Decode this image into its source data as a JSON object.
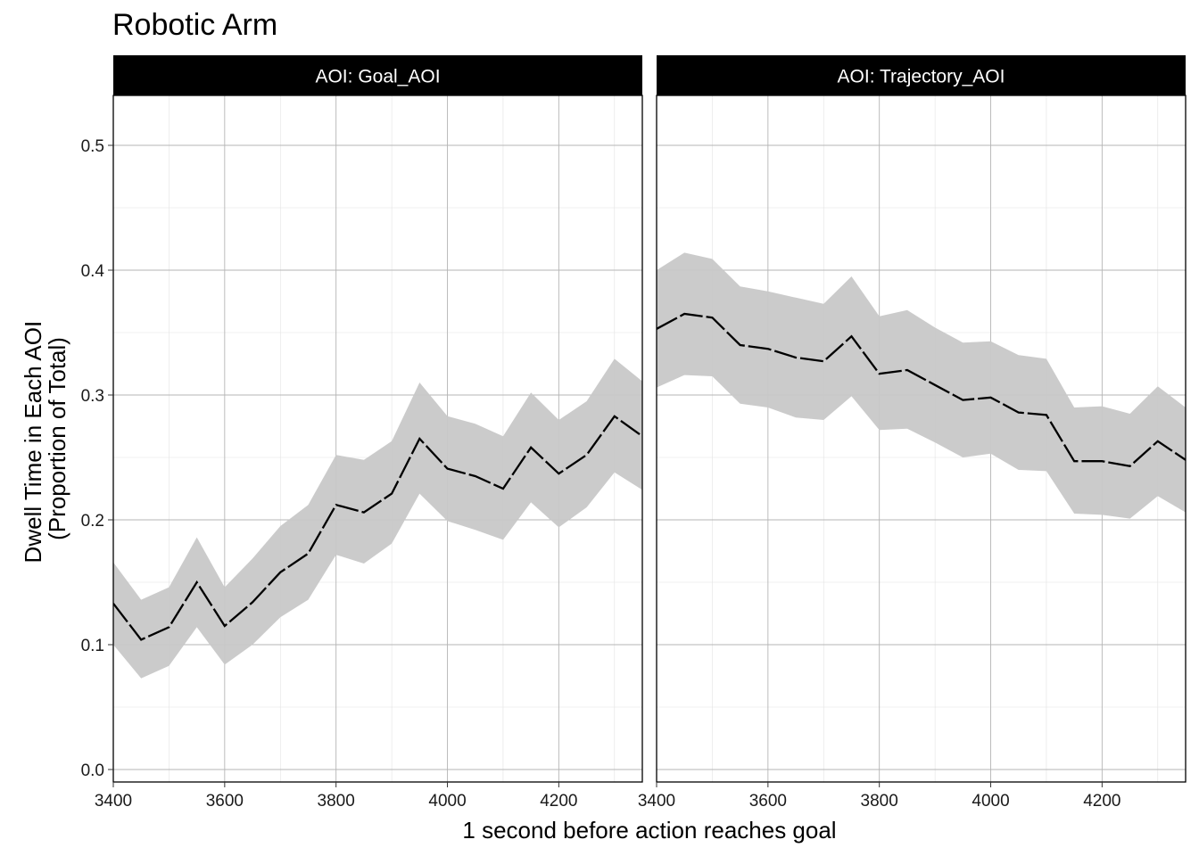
{
  "chart_data": {
    "type": "line",
    "title": "Robotic Arm",
    "xlabel": "1 second before action reaches goal",
    "ylabel_lines": [
      "Dwell Time in Each AOI",
      "(Proportion of Total)"
    ],
    "xlim": [
      3400,
      4350
    ],
    "ylim": [
      -0.01,
      0.54
    ],
    "x_ticks": [
      3400,
      3600,
      3800,
      4000,
      4200
    ],
    "x_tick_labels": [
      "3400",
      "3600",
      "3800",
      "4000",
      "4200"
    ],
    "y_ticks": [
      0.0,
      0.1,
      0.2,
      0.3,
      0.4,
      0.5
    ],
    "y_tick_labels": [
      "0.0",
      "0.1",
      "0.2",
      "0.3",
      "0.4",
      "0.5"
    ],
    "grid": true,
    "line_style": "dashed",
    "line_color": "#000000",
    "ribbon_color": "#c8c8c8",
    "panels": [
      {
        "label": "AOI:  Goal_AOI",
        "x": [
          3400,
          3450,
          3500,
          3550,
          3600,
          3650,
          3700,
          3750,
          3800,
          3850,
          3900,
          3950,
          4000,
          4050,
          4100,
          4150,
          4200,
          4250,
          4300,
          4350
        ],
        "y": [
          0.133,
          0.104,
          0.114,
          0.15,
          0.115,
          0.134,
          0.158,
          0.173,
          0.212,
          0.206,
          0.221,
          0.265,
          0.241,
          0.235,
          0.225,
          0.258,
          0.237,
          0.252,
          0.283,
          0.267
        ],
        "lower": [
          0.1,
          0.073,
          0.083,
          0.114,
          0.084,
          0.1,
          0.122,
          0.136,
          0.172,
          0.165,
          0.181,
          0.221,
          0.199,
          0.192,
          0.184,
          0.214,
          0.194,
          0.21,
          0.238,
          0.224
        ],
        "upper": [
          0.166,
          0.136,
          0.146,
          0.186,
          0.146,
          0.169,
          0.195,
          0.212,
          0.252,
          0.248,
          0.263,
          0.31,
          0.283,
          0.277,
          0.267,
          0.302,
          0.28,
          0.295,
          0.329,
          0.311
        ]
      },
      {
        "label": "AOI:  Trajectory_AOI",
        "x": [
          3400,
          3450,
          3500,
          3550,
          3600,
          3650,
          3700,
          3750,
          3800,
          3850,
          3900,
          3950,
          4000,
          4050,
          4100,
          4150,
          4200,
          4250,
          4300,
          4350
        ],
        "y": [
          0.353,
          0.365,
          0.362,
          0.34,
          0.337,
          0.33,
          0.327,
          0.347,
          0.317,
          0.32,
          0.308,
          0.296,
          0.298,
          0.286,
          0.284,
          0.247,
          0.247,
          0.243,
          0.263,
          0.248
        ],
        "lower": [
          0.306,
          0.316,
          0.315,
          0.293,
          0.29,
          0.282,
          0.28,
          0.299,
          0.272,
          0.273,
          0.262,
          0.25,
          0.253,
          0.24,
          0.239,
          0.205,
          0.204,
          0.201,
          0.219,
          0.206
        ],
        "upper": [
          0.4,
          0.414,
          0.409,
          0.387,
          0.383,
          0.378,
          0.373,
          0.395,
          0.363,
          0.368,
          0.354,
          0.342,
          0.343,
          0.332,
          0.329,
          0.29,
          0.291,
          0.285,
          0.307,
          0.29
        ]
      }
    ]
  }
}
